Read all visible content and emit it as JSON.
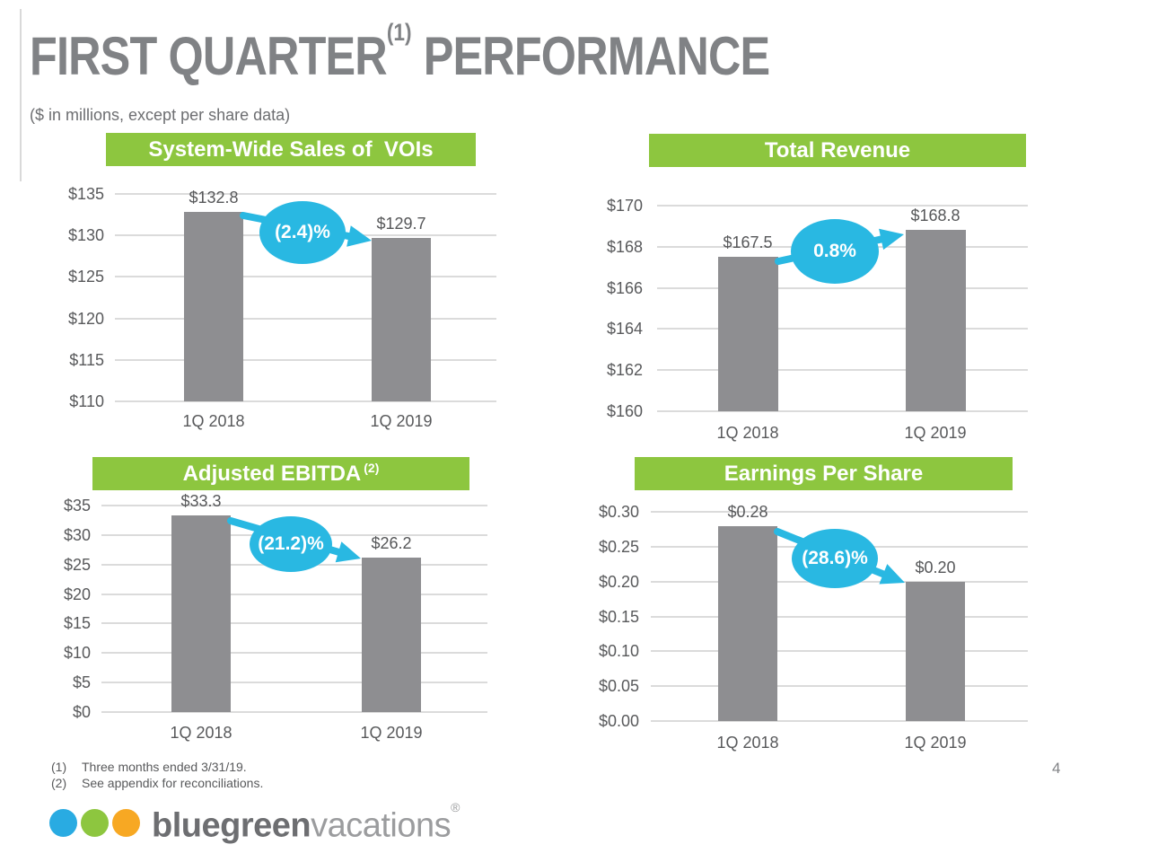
{
  "page": {
    "title_main": "FIRST QUARTER",
    "title_sup": "(1)",
    "title_rest": " PERFORMANCE",
    "subtitle": "($ in millions, except per share data)",
    "page_number": "4"
  },
  "colors": {
    "banner_green": "#8dc63f",
    "bar_gray": "#8e8e91",
    "callout_cyan": "#29b8e2",
    "gridline_gray": "#dbdbdb",
    "title_gray": "#808285",
    "text_gray": "#58595b"
  },
  "chart_data": [
    {
      "type": "bar",
      "title": "System-Wide Sales of  VOIs",
      "title_sup": "",
      "categories": [
        "1Q 2018",
        "1Q 2019"
      ],
      "values": [
        132.8,
        129.7
      ],
      "value_labels": [
        "$132.8",
        "$129.7"
      ],
      "change_label": "(2.4)%",
      "change_direction": "down",
      "ylim": [
        110,
        135
      ],
      "ytick_step": 5,
      "yticks": [
        "$110",
        "$115",
        "$120",
        "$125",
        "$130",
        "$135"
      ],
      "grid": true,
      "legend": "none"
    },
    {
      "type": "bar",
      "title": "Total Revenue",
      "title_sup": "",
      "categories": [
        "1Q 2018",
        "1Q 2019"
      ],
      "values": [
        167.5,
        168.8
      ],
      "value_labels": [
        "$167.5",
        "$168.8"
      ],
      "change_label": "0.8%",
      "change_direction": "up",
      "ylim": [
        160,
        170
      ],
      "ytick_step": 2,
      "yticks": [
        "$160",
        "$162",
        "$164",
        "$166",
        "$168",
        "$170"
      ],
      "grid": true,
      "legend": "none"
    },
    {
      "type": "bar",
      "title": "Adjusted EBITDA",
      "title_sup": "(2)",
      "categories": [
        "1Q 2018",
        "1Q 2019"
      ],
      "values": [
        33.3,
        26.2
      ],
      "value_labels": [
        "$33.3",
        "$26.2"
      ],
      "change_label": "(21.2)%",
      "change_direction": "down",
      "ylim": [
        0,
        35
      ],
      "ytick_step": 5,
      "yticks": [
        "$0",
        "$5",
        "$10",
        "$15",
        "$20",
        "$25",
        "$30",
        "$35"
      ],
      "grid": true,
      "legend": "none"
    },
    {
      "type": "bar",
      "title": "Earnings Per Share",
      "title_sup": "",
      "categories": [
        "1Q 2018",
        "1Q 2019"
      ],
      "values": [
        0.28,
        0.2
      ],
      "value_labels": [
        "$0.28",
        "$0.20"
      ],
      "change_label": "(28.6)%",
      "change_direction": "down",
      "ylim": [
        0,
        0.3
      ],
      "ytick_step": 0.05,
      "yticks": [
        "$0.00",
        "$0.05",
        "$0.10",
        "$0.15",
        "$0.20",
        "$0.25",
        "$0.30"
      ],
      "grid": true,
      "legend": "none"
    }
  ],
  "footnotes": [
    {
      "marker": "(1)",
      "text": "Three months ended 3/31/19."
    },
    {
      "marker": "(2)",
      "text": "See appendix for reconciliations."
    }
  ],
  "logo": {
    "dot_colors": [
      "#29abe2",
      "#8dc63f",
      "#f7a823"
    ],
    "brand_bold": "bluegreen",
    "brand_light": "vacations",
    "registered_mark": "®"
  }
}
